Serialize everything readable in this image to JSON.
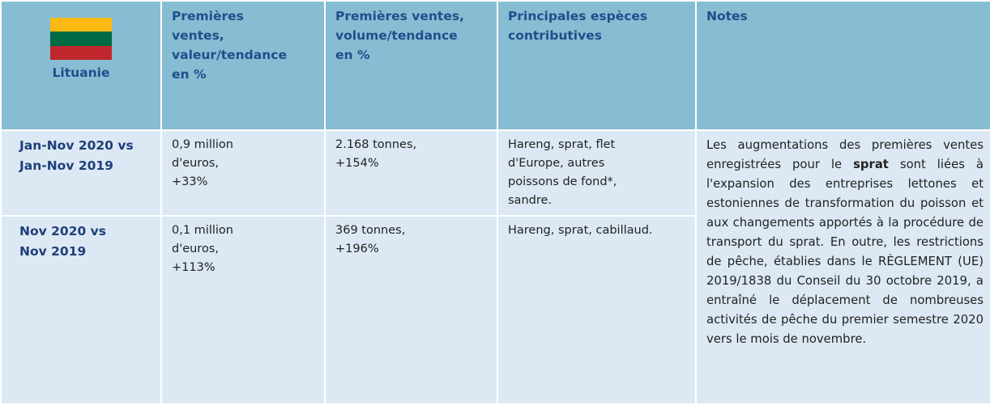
{
  "header": {
    "country": "Lituanie",
    "columns": [
      [
        "Premières",
        "ventes,",
        "valeur/tendance",
        "en %"
      ],
      [
        "Premières ventes,",
        "volume/tendance",
        "en %"
      ],
      [
        "Principales espèces",
        "contributives"
      ],
      [
        "Notes"
      ]
    ]
  },
  "rows": [
    {
      "period": [
        "Jan-Nov 2020 vs",
        "Jan-Nov 2019"
      ],
      "value": [
        "0,9 million",
        "d'euros,",
        "+33%"
      ],
      "volume": [
        "2.168 tonnes,",
        "+154%"
      ],
      "species": [
        "Hareng, sprat, flet",
        "d'Europe, autres",
        "poissons de fond*,",
        "sandre."
      ]
    },
    {
      "period": [
        "Nov 2020 vs",
        "Nov 2019"
      ],
      "value": [
        "0,1 million",
        "d'euros,",
        "+113%"
      ],
      "volume": [
        "369 tonnes,",
        "+196%"
      ],
      "species": [
        "Hareng, sprat, cabillaud."
      ]
    }
  ],
  "notes": [
    "Les augmentations des premières ventes enregistrées pour le ",
    "sprat",
    " sont liées à l'expansion des entreprises lettones et estoniennes de transformation du poisson et aux changements apportés à la procédure de transport du sprat. En outre, les restrictions de pêche, établies dans le RÈGLEMENT (UE) 2019/1838 du Conseil du 30 octobre 2019, a entraîné le déplacement de nombreuses activités de pêche du premier semestre 2020 vers le mois de novembre."
  ]
}
